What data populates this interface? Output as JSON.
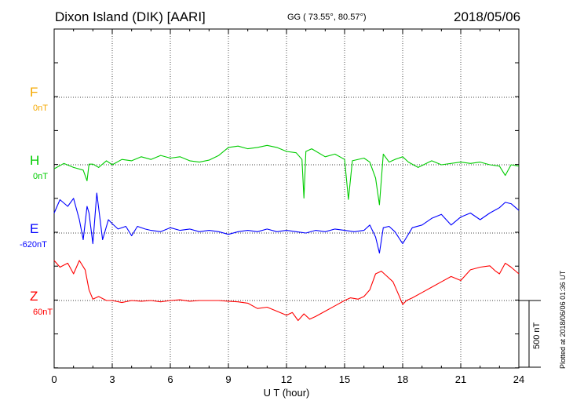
{
  "header": {
    "title": "Dixon Island (DIK)  [AARI]",
    "coords": "GG ( 73.55°,  80.57°)",
    "date": "2018/05/06"
  },
  "footer": {
    "plotted": "Plotted at 2018/06/06 01:36 UT",
    "scale": "500 nT"
  },
  "colors": {
    "F": "#f5a800",
    "H": "#00cc00",
    "E": "#0000ff",
    "Z": "#ff0000"
  },
  "chart_data": {
    "type": "line",
    "xlabel": "U T (hour)",
    "xlim": [
      0,
      24
    ],
    "x_ticks": [
      "0",
      "3",
      "6",
      "9",
      "12",
      "15",
      "18",
      "21",
      "24"
    ],
    "channels": [
      {
        "name": "F",
        "baseline": "0nT"
      },
      {
        "name": "H",
        "baseline": "0nT"
      },
      {
        "name": "E",
        "baseline": "-620nT"
      },
      {
        "name": "Z",
        "baseline": "60nT"
      }
    ],
    "scale_bar_nT": 500,
    "series": [
      {
        "name": "H",
        "x": [
          0,
          0.5,
          1,
          1.5,
          1.7,
          1.8,
          2,
          2.3,
          2.7,
          3,
          3.5,
          4,
          4.5,
          5,
          5.5,
          6,
          6.5,
          7,
          7.5,
          8,
          8.5,
          9,
          9.5,
          10,
          10.5,
          11,
          11.5,
          12,
          12.5,
          12.8,
          12.9,
          13,
          13.3,
          14,
          14.5,
          15,
          15.2,
          15.4,
          16,
          16.3,
          16.6,
          16.8,
          17,
          17.3,
          17.6,
          18,
          18.3,
          18.8,
          19.5,
          20,
          21,
          21.5,
          22,
          22.5,
          23,
          23.3,
          23.6,
          24
        ],
        "values": [
          -30,
          10,
          -20,
          -40,
          -120,
          5,
          5,
          -20,
          30,
          0,
          40,
          30,
          60,
          40,
          70,
          50,
          60,
          30,
          20,
          35,
          70,
          130,
          140,
          120,
          130,
          145,
          130,
          100,
          90,
          40,
          -250,
          100,
          120,
          60,
          80,
          40,
          -260,
          30,
          50,
          20,
          -100,
          -300,
          80,
          20,
          40,
          60,
          20,
          -20,
          30,
          0,
          20,
          10,
          20,
          0,
          -10,
          -80,
          0,
          -10
        ]
      },
      {
        "name": "E",
        "x": [
          0,
          0.3,
          0.7,
          1,
          1.3,
          1.5,
          1.7,
          1.8,
          2,
          2.2,
          2.5,
          2.8,
          3,
          3.3,
          3.7,
          4,
          4.3,
          4.7,
          5,
          5.5,
          6,
          6.5,
          7,
          7.5,
          8,
          8.5,
          9,
          9.5,
          10,
          10.5,
          11,
          11.5,
          12,
          12.5,
          13,
          13.5,
          14,
          14.5,
          15,
          15.5,
          16,
          16.3,
          16.6,
          16.8,
          17,
          17.3,
          17.6,
          18,
          18.5,
          19,
          19.5,
          20,
          20.5,
          21,
          21.5,
          22,
          22.5,
          23,
          23.3,
          23.6,
          24
        ],
        "values": [
          150,
          250,
          200,
          260,
          100,
          -50,
          200,
          150,
          -80,
          300,
          -50,
          100,
          70,
          30,
          50,
          -20,
          50,
          30,
          20,
          10,
          40,
          20,
          30,
          10,
          20,
          10,
          -10,
          10,
          20,
          10,
          30,
          10,
          20,
          10,
          0,
          20,
          10,
          30,
          20,
          10,
          20,
          60,
          -30,
          -150,
          40,
          50,
          10,
          -80,
          40,
          60,
          110,
          140,
          60,
          120,
          150,
          100,
          150,
          190,
          230,
          220,
          170
        ]
      },
      {
        "name": "Z",
        "x": [
          0,
          0.3,
          0.7,
          1,
          1.3,
          1.6,
          1.8,
          2,
          2.3,
          2.7,
          3,
          3.5,
          4,
          4.5,
          5,
          5.5,
          6,
          6.5,
          7,
          7.5,
          8,
          8.5,
          9,
          9.5,
          10,
          10.5,
          11,
          11.5,
          12,
          12.3,
          12.6,
          12.9,
          13.2,
          13.5,
          14,
          14.5,
          15,
          15.3,
          15.7,
          16,
          16.3,
          16.6,
          16.9,
          17.2,
          17.5,
          17.8,
          18,
          18.2,
          18.5,
          19,
          19.5,
          20,
          20.5,
          21,
          21.5,
          22,
          22.5,
          22.8,
          23,
          23.3,
          23.6,
          24
        ],
        "values": [
          300,
          250,
          280,
          200,
          300,
          230,
          80,
          10,
          30,
          0,
          0,
          -15,
          0,
          -5,
          0,
          -10,
          0,
          5,
          -5,
          0,
          0,
          0,
          -5,
          -10,
          -20,
          -60,
          -50,
          -80,
          -110,
          -90,
          -150,
          -100,
          -140,
          -120,
          -80,
          -40,
          0,
          20,
          10,
          30,
          80,
          200,
          220,
          180,
          140,
          40,
          -30,
          0,
          20,
          60,
          100,
          140,
          180,
          150,
          230,
          250,
          260,
          220,
          200,
          280,
          250,
          200
        ]
      }
    ]
  }
}
